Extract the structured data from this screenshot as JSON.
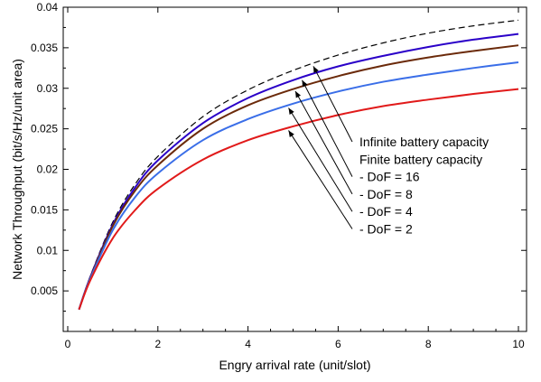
{
  "chart_data": {
    "type": "line",
    "title": "",
    "xlabel": "Engry arrival rate (unit/slot)",
    "ylabel": "Network Throughput (bit/s/Hz/unit area)",
    "xlim": [
      0,
      10
    ],
    "ylim": [
      0,
      0.04
    ],
    "xticks": [
      0,
      2,
      4,
      6,
      8,
      10
    ],
    "yticks": [
      0.005,
      0.01,
      0.015,
      0.02,
      0.025,
      0.03,
      0.035,
      0.04
    ],
    "xtick_labels": [
      "0",
      "2",
      "4",
      "6",
      "8",
      "10"
    ],
    "ytick_labels": [
      "0.005",
      "0.01",
      "0.015",
      "0.02",
      "0.025",
      "0.03",
      "0.035",
      "0.04"
    ],
    "grid": false,
    "x": [
      0.25,
      0.5,
      1,
      1.5,
      2,
      3,
      4,
      5,
      6,
      7,
      8,
      9,
      10
    ],
    "series": [
      {
        "key": "infinite",
        "color": "#000000",
        "dashed": true,
        "values": [
          0.0027,
          0.0068,
          0.0135,
          0.0182,
          0.0216,
          0.0265,
          0.0298,
          0.0322,
          0.0341,
          0.0356,
          0.0368,
          0.0377,
          0.0384
        ]
      },
      {
        "key": "dof16",
        "color": "#2a00c8",
        "dashed": false,
        "values": [
          0.0027,
          0.0067,
          0.0132,
          0.0178,
          0.0211,
          0.0257,
          0.0288,
          0.031,
          0.0327,
          0.034,
          0.0351,
          0.036,
          0.0367
        ]
      },
      {
        "key": "dof8",
        "color": "#6b2a0a",
        "dashed": false,
        "values": [
          0.0027,
          0.0066,
          0.013,
          0.0174,
          0.0205,
          0.025,
          0.0279,
          0.0299,
          0.0315,
          0.0328,
          0.0338,
          0.0346,
          0.0353
        ]
      },
      {
        "key": "dof4",
        "color": "#3a6ee8",
        "dashed": false,
        "values": [
          0.0027,
          0.0065,
          0.0125,
          0.0166,
          0.0195,
          0.0236,
          0.0262,
          0.0281,
          0.0296,
          0.0308,
          0.0317,
          0.0325,
          0.0332
        ]
      },
      {
        "key": "dof2",
        "color": "#e11a1a",
        "dashed": false,
        "values": [
          0.0027,
          0.0063,
          0.0115,
          0.015,
          0.0176,
          0.0212,
          0.0236,
          0.0253,
          0.0267,
          0.0278,
          0.0286,
          0.0293,
          0.0299
        ]
      }
    ],
    "annotations": [
      {
        "text": "Infinite battery capacity",
        "series": "infinite",
        "target_x": 5.45
      },
      {
        "text": "Finite battery capacity",
        "series": null,
        "target_x": null
      },
      {
        "text": "- DoF = 16",
        "series": "dof16",
        "target_x": 5.2
      },
      {
        "text": "- DoF = 8",
        "series": "dof8",
        "target_x": 5.05
      },
      {
        "text": "- DoF = 4",
        "series": "dof4",
        "target_x": 4.9
      },
      {
        "text": "- DoF = 2",
        "series": "dof2",
        "target_x": 4.9
      }
    ]
  }
}
